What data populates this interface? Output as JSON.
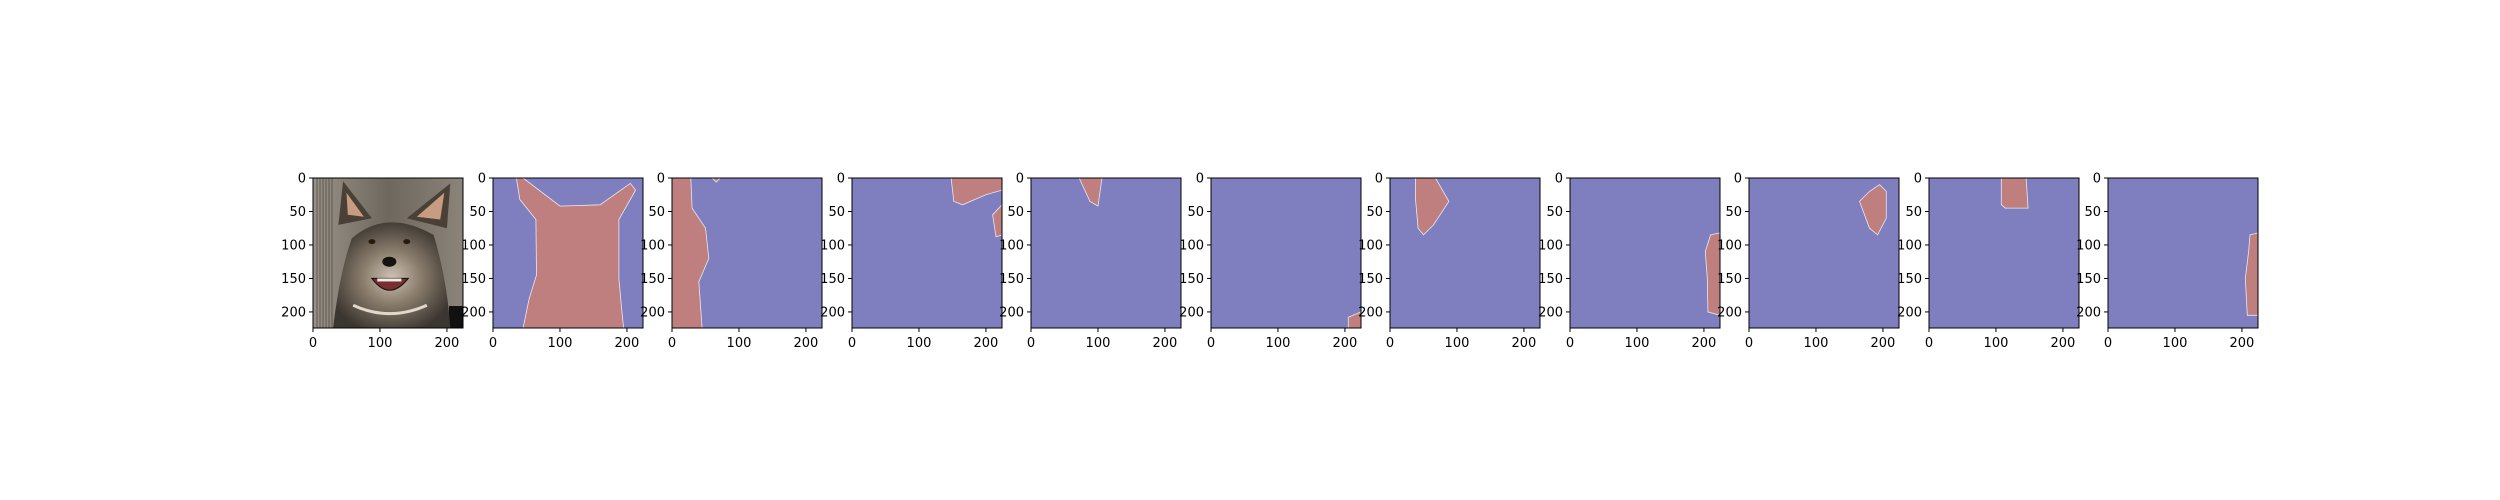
{
  "figure": {
    "panel_count": 11,
    "axis_range": [
      0,
      224
    ],
    "x_ticks": [
      "0",
      "100",
      "200"
    ],
    "y_ticks": [
      "0",
      "50",
      "100",
      "150",
      "200"
    ],
    "colors": {
      "background_blue": "#7f7fbf",
      "mask_red": "#bf7f7f",
      "axes_edge": "#000000"
    }
  },
  "panels": [
    {
      "index": 1,
      "kind": "photo",
      "subject": "dog-photo"
    },
    {
      "index": 2,
      "kind": "mask",
      "region": "dog-body-mask"
    },
    {
      "index": 3,
      "kind": "mask",
      "region": "left-strip-mask"
    },
    {
      "index": 4,
      "kind": "mask",
      "region": "top-right-ear-mask"
    },
    {
      "index": 5,
      "kind": "mask",
      "region": "top-small-wedge-mask"
    },
    {
      "index": 6,
      "kind": "mask",
      "region": "bottom-right-corner-mask"
    },
    {
      "index": 7,
      "kind": "mask",
      "region": "left-ear-mask"
    },
    {
      "index": 8,
      "kind": "mask",
      "region": "right-edge-mask"
    },
    {
      "index": 9,
      "kind": "mask",
      "region": "right-ear-mask"
    },
    {
      "index": 10,
      "kind": "mask",
      "region": "top-center-block-mask"
    },
    {
      "index": 11,
      "kind": "mask",
      "region": "right-edge-mask-2"
    }
  ]
}
